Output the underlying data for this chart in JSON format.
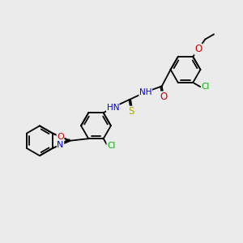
{
  "bg_color": "#ebebeb",
  "bond_color": "#000000",
  "bond_width": 1.3,
  "atom_colors": {
    "C": "#000000",
    "N": "#0000cc",
    "O": "#cc0000",
    "S": "#aaaa00",
    "Cl": "#00aa00",
    "H": "#666666"
  },
  "font_size": 7.5
}
